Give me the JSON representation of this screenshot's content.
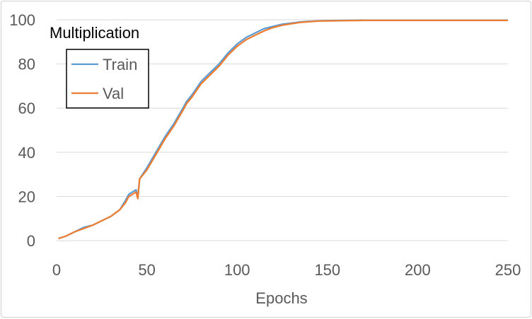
{
  "chart_data": {
    "type": "line",
    "title": "Multiplication",
    "xlabel": "Epochs",
    "ylabel": "",
    "xlim": [
      0,
      250
    ],
    "ylim": [
      0,
      100
    ],
    "x_ticks": [
      0,
      50,
      100,
      150,
      200,
      250
    ],
    "y_ticks": [
      0,
      20,
      40,
      60,
      80,
      100
    ],
    "grid": "horizontal",
    "legend_position": "top-left",
    "series": [
      {
        "name": "Train",
        "color": "#5b9bd5",
        "x": [
          1,
          5,
          10,
          15,
          20,
          25,
          30,
          35,
          38,
          40,
          42,
          44,
          45,
          46,
          50,
          55,
          60,
          65,
          70,
          72,
          75,
          80,
          85,
          90,
          95,
          100,
          105,
          110,
          115,
          120,
          125,
          130,
          135,
          140,
          145,
          150,
          160,
          170,
          180,
          200,
          220,
          250
        ],
        "values": [
          1,
          2,
          4,
          6,
          7,
          9,
          11,
          14,
          18,
          21,
          22,
          23,
          20,
          28,
          33,
          40,
          47,
          53,
          60,
          63,
          66,
          72,
          76,
          80,
          85,
          89,
          92,
          94,
          96,
          97,
          98,
          98.5,
          99,
          99.3,
          99.5,
          99.6,
          99.7,
          99.8,
          99.8,
          99.8,
          99.8,
          99.8
        ]
      },
      {
        "name": "Val",
        "color": "#ed7d31",
        "x": [
          1,
          5,
          10,
          15,
          20,
          25,
          30,
          35,
          38,
          40,
          42,
          44,
          45,
          46,
          50,
          55,
          60,
          65,
          70,
          72,
          75,
          80,
          85,
          90,
          95,
          100,
          105,
          110,
          115,
          120,
          125,
          130,
          135,
          140,
          145,
          150,
          160,
          170,
          180,
          200,
          220,
          250
        ],
        "values": [
          1,
          2,
          4,
          5.5,
          7,
          9,
          11,
          14,
          17,
          20,
          21,
          22,
          19,
          28,
          32,
          39,
          46,
          52,
          59,
          62,
          65,
          71,
          75,
          79,
          84,
          88,
          91,
          93,
          95,
          96.5,
          97.5,
          98.2,
          98.8,
          99.1,
          99.4,
          99.5,
          99.6,
          99.7,
          99.7,
          99.7,
          99.7,
          99.7
        ]
      }
    ]
  }
}
